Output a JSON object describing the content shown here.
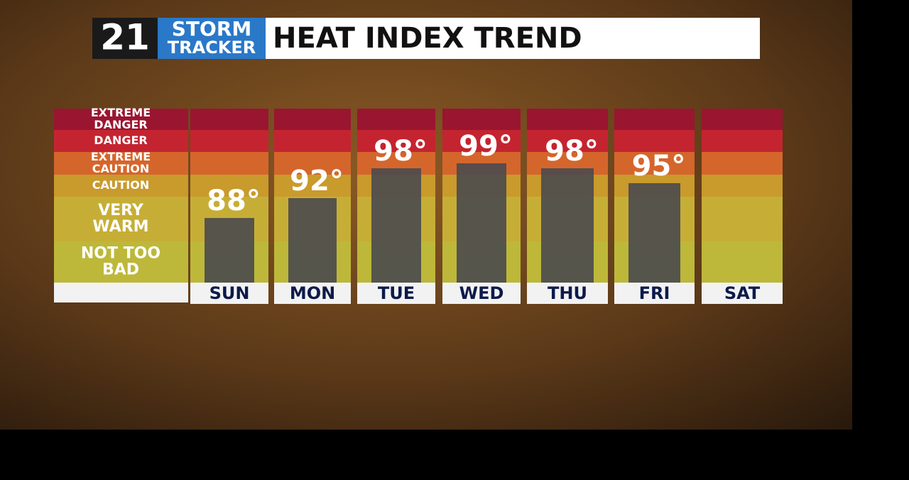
{
  "header": {
    "logo_number": "21",
    "logo_top": "STORM",
    "logo_bottom": "TRACKER",
    "title": "HEAT INDEX TREND"
  },
  "chart_data": {
    "type": "bar",
    "zones": [
      [
        "EXTREME",
        "DANGER"
      ],
      [
        "DANGER"
      ],
      [
        "EXTREME",
        "CAUTION"
      ],
      [
        "CAUTION"
      ],
      [
        "VERY",
        "WARM"
      ],
      [
        "NOT TOO",
        "BAD"
      ]
    ],
    "categories": [
      "SUN",
      "MON",
      "TUE",
      "WED",
      "THU",
      "FRI",
      "SAT"
    ],
    "values": [
      88,
      92,
      98,
      99,
      98,
      95,
      null
    ],
    "value_labels": [
      "88°",
      "92°",
      "98°",
      "99°",
      "98°",
      "95°",
      null
    ],
    "color": "#4a4a4e",
    "ylim": [
      75,
      110
    ]
  }
}
